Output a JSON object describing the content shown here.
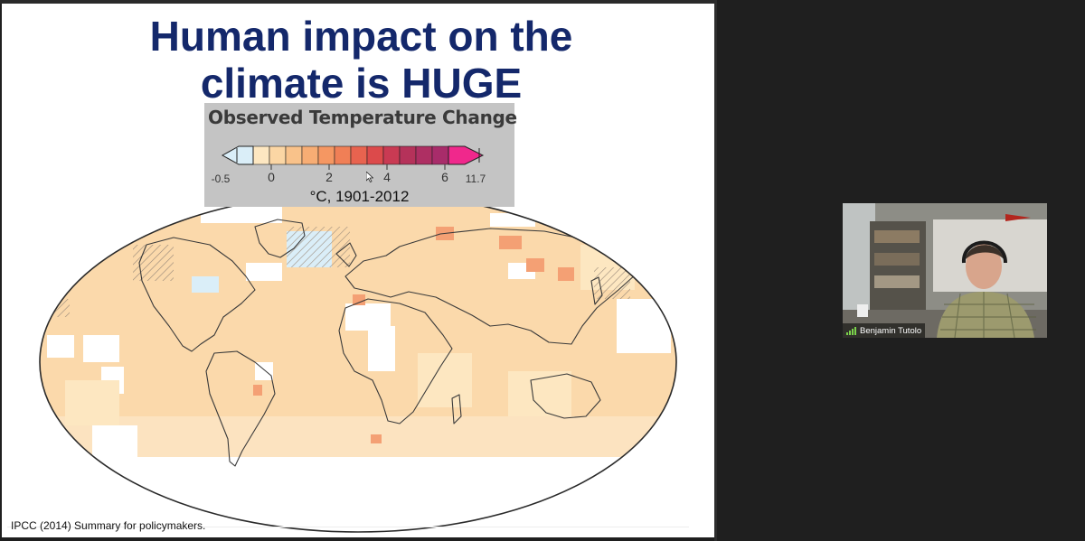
{
  "slide": {
    "title_line1": "Human impact on the",
    "title_line2": "climate is HUGE",
    "citation": "IPCC (2014) Summary for policymakers."
  },
  "legend": {
    "title": "Observed Temperature Change",
    "unit": "°C, 1901-2012",
    "ticks": [
      "-0.5",
      "0",
      "2",
      "4",
      "6",
      "11.7"
    ],
    "colors": {
      "below_zero": "#daeef8",
      "scale": [
        "#fde7c1",
        "#fbd6a4",
        "#f9c28a",
        "#f7ad74",
        "#f59762",
        "#f07f56",
        "#e8634f",
        "#dc4a4b",
        "#c93a53",
        "#b5325a",
        "#ae2f63",
        "#a82c6a"
      ],
      "arrow_max": "#f0288c"
    }
  },
  "participant": {
    "name": "Benjamin Tutolo"
  },
  "colors": {
    "title": "#14286b",
    "land": "#fbd9ab",
    "ocean_band": "#fce3c0",
    "hot_spot": "#f4a074",
    "no_data": "#ffffff"
  }
}
